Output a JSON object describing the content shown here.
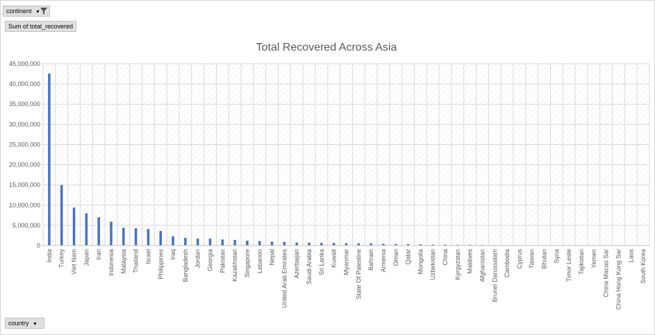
{
  "pivot": {
    "filter_field": "continent",
    "value_field": "Sum of total_recovered",
    "axis_field": "country"
  },
  "colors": {
    "bar": "#4472c4",
    "grid": "#d9d9d9",
    "hatch": "#e3e3e3",
    "text": "#595959"
  },
  "icons": {
    "filter": "funnel-icon",
    "dropdown": "chevron-down-icon"
  },
  "chart_data": {
    "type": "bar",
    "title": "Total Recovered Across Asia",
    "xlabel": "",
    "ylabel": "",
    "ylim": [
      0,
      45000000
    ],
    "yticks": [
      0,
      5000000,
      10000000,
      15000000,
      20000000,
      25000000,
      30000000,
      35000000,
      40000000,
      45000000
    ],
    "ytick_labels": [
      "0",
      "5,000,000",
      "10,000,000",
      "15,000,000",
      "20,000,000",
      "25,000,000",
      "30,000,000",
      "35,000,000",
      "40,000,000",
      "45,000,000"
    ],
    "grid": true,
    "legend": "none",
    "categories": [
      "India",
      "Turkey",
      "Viet Nam",
      "Japan",
      "Iran",
      "Indonesia",
      "Malaysia",
      "Thailand",
      "Israel",
      "Philippines",
      "Iraq",
      "Bangladesh",
      "Jordan",
      "Georgia",
      "Pakistan",
      "Kazakhstan",
      "Singapore",
      "Lebanon",
      "Nepal",
      "United Arab Emirates",
      "Azerbaijan",
      "Saudi Arabia",
      "Sri Lanka",
      "Kuwait",
      "Myanmar",
      "State Of Palestine",
      "Bahrain",
      "Armenia",
      "Oman",
      "Qatar",
      "Mongolia",
      "Uzbekistan",
      "China",
      "Kyrgyzstan",
      "Maldives",
      "Afghanistan",
      "Brunei Darussalam",
      "Cambodia",
      "Cyprus",
      "Taiwan",
      "Bhutan",
      "Syria",
      "Timor Leste",
      "Tajikistan",
      "Yemen",
      "China Macao Sar",
      "China Hong Kong Sar",
      "Laos",
      "South Korea"
    ],
    "values": [
      42600000,
      15000000,
      9400000,
      8000000,
      7000000,
      5900000,
      4400000,
      4300000,
      4100000,
      3600000,
      2300000,
      1900000,
      1700000,
      1700000,
      1500000,
      1400000,
      1200000,
      1100000,
      950000,
      900000,
      750000,
      730000,
      650000,
      620000,
      580000,
      550000,
      520000,
      420000,
      390000,
      360000,
      300000,
      240000,
      220000,
      190000,
      170000,
      150000,
      130000,
      120000,
      0,
      0,
      0,
      0,
      0,
      0,
      0,
      0,
      0,
      0,
      0
    ]
  }
}
